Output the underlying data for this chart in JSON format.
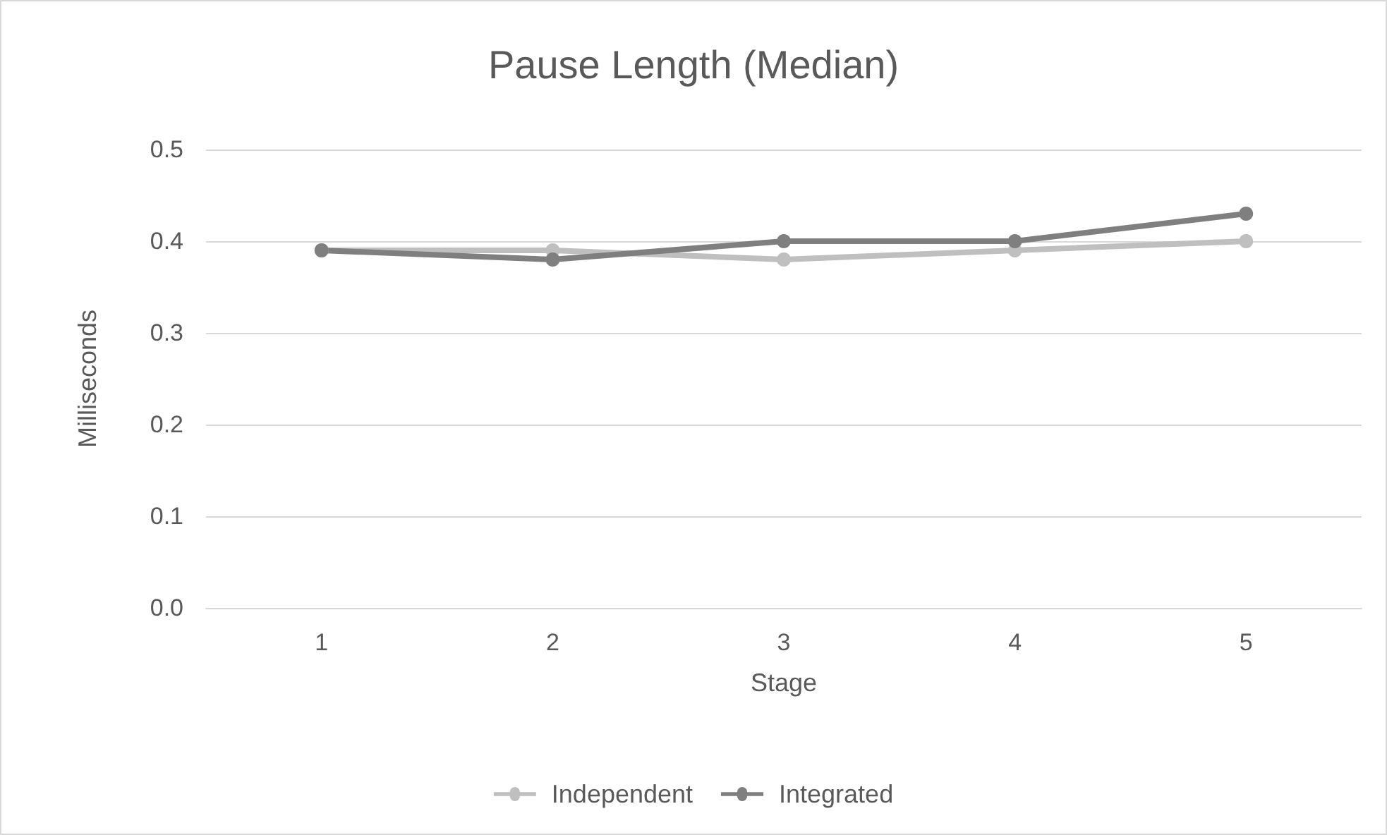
{
  "chart_data": {
    "type": "line",
    "title": "Pause Length (Median)",
    "xlabel": "Stage",
    "ylabel": "Milliseconds",
    "categories": [
      "1",
      "2",
      "3",
      "4",
      "5"
    ],
    "series": [
      {
        "name": "Independent",
        "color": "#bfbfbf",
        "values": [
          0.39,
          0.39,
          0.38,
          0.39,
          0.4
        ]
      },
      {
        "name": "Integrated",
        "color": "#7f7f7f",
        "values": [
          0.39,
          0.38,
          0.4,
          0.4,
          0.43
        ]
      }
    ],
    "ylim": [
      0,
      0.5
    ],
    "yticks": [
      {
        "value": 0,
        "label": "0.0"
      },
      0.1,
      0.2,
      0.3,
      0.4,
      0.5
    ],
    "grid": "y",
    "legend": "bottom",
    "marker": "circle",
    "line_style": "solid"
  }
}
